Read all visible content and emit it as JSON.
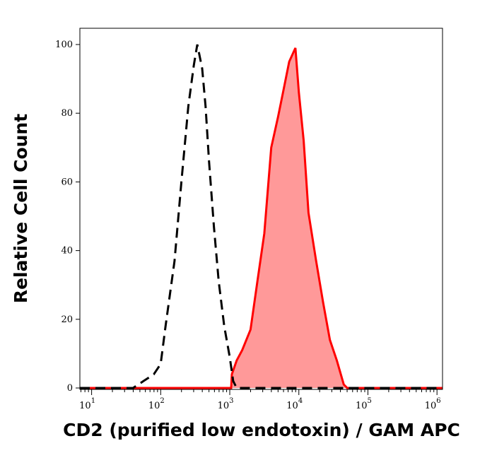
{
  "chart_data": {
    "type": "area",
    "title": "",
    "xlabel": "CD2 (purified low endotoxin) / GAM APC",
    "ylabel": "Relative Cell Count",
    "x_scale": "log",
    "xlim_log10": [
      0.83,
      6.08
    ],
    "ylim": [
      0,
      100
    ],
    "x_ticks": [
      {
        "exp": "1"
      },
      {
        "exp": "2"
      },
      {
        "exp": "3"
      },
      {
        "exp": "4"
      },
      {
        "exp": "5"
      },
      {
        "exp": "6"
      }
    ],
    "y_ticks": [
      0,
      20,
      40,
      60,
      80,
      100
    ],
    "grid": false,
    "series": [
      {
        "style": "dashed-line",
        "color": "#000000",
        "log10_x": [
          0.83,
          1.6,
          1.75,
          1.9,
          2.0,
          2.07,
          2.2,
          2.3,
          2.4,
          2.48,
          2.53,
          2.6,
          2.65,
          2.7,
          2.77,
          2.84,
          2.92,
          3.0,
          3.05,
          3.1,
          6.08
        ],
        "y": [
          0,
          0,
          2,
          4,
          7,
          18,
          37,
          60,
          82,
          94,
          100,
          93,
          82,
          66,
          47,
          31,
          18,
          9,
          2,
          0,
          0
        ]
      },
      {
        "style": "filled",
        "color": "#ff0000",
        "fill": "#ff9999",
        "log10_x": [
          0.83,
          3.02,
          3.03,
          3.1,
          3.18,
          3.3,
          3.4,
          3.5,
          3.6,
          3.7,
          3.78,
          3.86,
          3.95,
          4.0,
          4.07,
          4.14,
          4.25,
          4.35,
          4.45,
          4.55,
          4.65,
          4.7,
          6.08
        ],
        "y": [
          0,
          0,
          4,
          8,
          11,
          17,
          31,
          45,
          70,
          79,
          87,
          95,
          99,
          86,
          72,
          51,
          37,
          25,
          14,
          8,
          1,
          0,
          0
        ]
      }
    ]
  }
}
